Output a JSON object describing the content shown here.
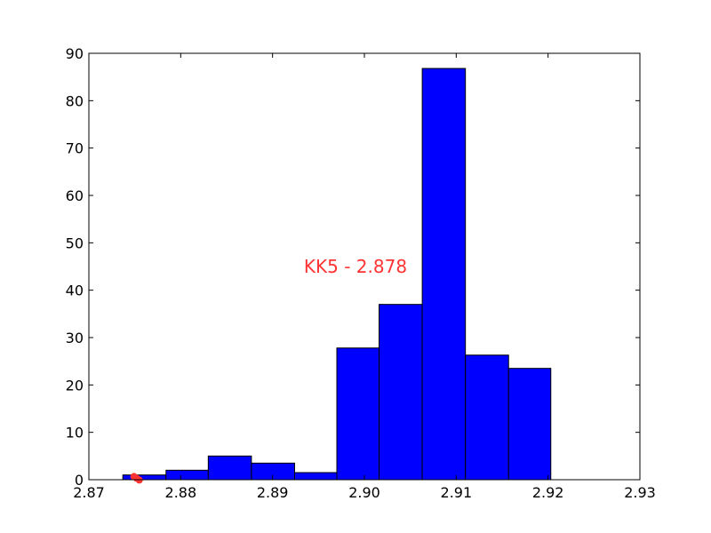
{
  "chart_data": {
    "type": "bar",
    "bins": [
      {
        "x0": 2.8737,
        "x1": 2.8784,
        "count": 1
      },
      {
        "x0": 2.8784,
        "x1": 2.883,
        "count": 2
      },
      {
        "x0": 2.883,
        "x1": 2.8877,
        "count": 5
      },
      {
        "x0": 2.8877,
        "x1": 2.8924,
        "count": 3.5
      },
      {
        "x0": 2.8924,
        "x1": 2.897,
        "count": 1.5
      },
      {
        "x0": 2.897,
        "x1": 2.9016,
        "count": 27.8
      },
      {
        "x0": 2.9016,
        "x1": 2.9063,
        "count": 37
      },
      {
        "x0": 2.9063,
        "x1": 2.911,
        "count": 86.8
      },
      {
        "x0": 2.911,
        "x1": 2.9157,
        "count": 26.3
      },
      {
        "x0": 2.9157,
        "x1": 2.9203,
        "count": 23.5
      }
    ],
    "xlim": [
      2.87,
      2.93
    ],
    "ylim": [
      0,
      90
    ],
    "xticks": [
      "2.87",
      "2.88",
      "2.89",
      "2.90",
      "2.91",
      "2.92",
      "2.93"
    ],
    "yticks": [
      "0",
      "10",
      "20",
      "30",
      "40",
      "50",
      "60",
      "70",
      "80",
      "90"
    ],
    "annotation": {
      "text": "KK5 - 2.878",
      "color": "#ff3333"
    },
    "marker": {
      "x": 2.8752,
      "y": 0.3,
      "color": "#ff3333"
    },
    "bar_color": "#0000ff",
    "grid": false,
    "title": "",
    "xlabel": "",
    "ylabel": ""
  }
}
